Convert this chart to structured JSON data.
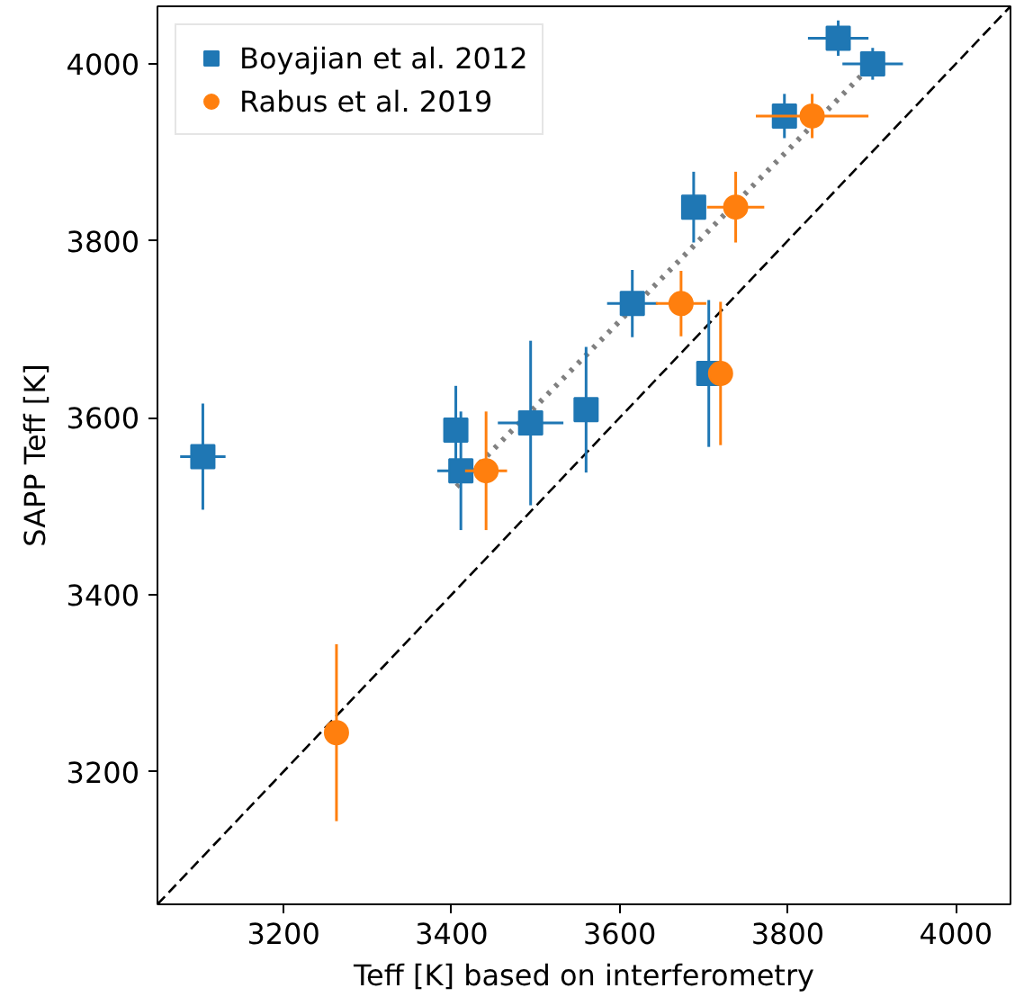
{
  "chart_data": {
    "type": "scatter",
    "xlabel": "Teff [K] based on interferometry",
    "ylabel": "SAPP Teff [K]",
    "xlim": [
      3050,
      4065
    ],
    "ylim": [
      3050,
      4065
    ],
    "xticks": [
      3200,
      3400,
      3600,
      3800,
      4000
    ],
    "yticks": [
      3200,
      3400,
      3600,
      3800,
      4000
    ],
    "grid": false,
    "legend": "top left",
    "series": [
      {
        "type": "line",
        "color": "#000000",
        "line_style": "dashed",
        "x": [
          3050,
          4065
        ],
        "values": [
          3050,
          4065
        ]
      },
      {
        "type": "line",
        "color": "#808080",
        "line_style": "dotted",
        "x": [
          3406,
          3894
        ],
        "values": [
          3522,
          3993
        ]
      },
      {
        "name": "Boyajian et al. 2012",
        "color": "#1f77b4",
        "marker": "square",
        "x": [
          3104,
          3405,
          3411,
          3494,
          3560,
          3615,
          3688,
          3706,
          3796,
          3860,
          3901
        ],
        "values": [
          3556,
          3586,
          3540,
          3594,
          3609,
          3729,
          3838,
          3650,
          3941,
          4029,
          4000
        ],
        "errors": [
          60,
          50,
          67,
          93,
          71,
          38,
          40,
          83,
          25,
          20,
          18
        ],
        "xerrors": [
          27,
          10,
          28,
          39,
          5,
          30,
          10,
          5,
          10,
          36,
          36
        ]
      },
      {
        "name": "Rabus et al. 2019",
        "color": "#ff7f0e",
        "marker": "circle",
        "x": [
          3263,
          3441,
          3673,
          3720,
          3738,
          3829
        ],
        "values": [
          3244,
          3540,
          3729,
          3650,
          3838,
          3941
        ],
        "errors": [
          100,
          67,
          37,
          81,
          40,
          25
        ],
        "xerrors": [
          10,
          25,
          30,
          12,
          34,
          67
        ]
      }
    ]
  }
}
